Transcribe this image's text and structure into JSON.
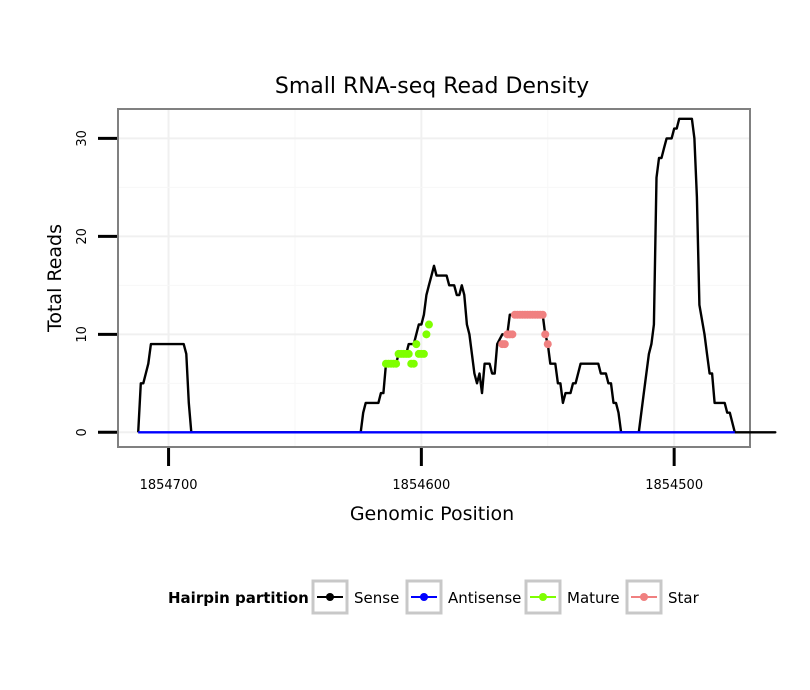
{
  "chart_data": {
    "type": "line",
    "title": "Small RNA-seq Read Density",
    "xlabel": "Genomic Position",
    "ylabel": "Total Reads",
    "x_reversed": true,
    "xlim": [
      1854720,
      1854470
    ],
    "ylim": [
      -1.5,
      33
    ],
    "x_ticks": [
      1854700,
      1854600,
      1854500
    ],
    "x_tick_labels": [
      "1854700",
      "1854600",
      "1854500"
    ],
    "y_ticks": [
      0,
      10,
      20,
      30
    ],
    "y_tick_labels": [
      "0",
      "10",
      "20",
      "30"
    ],
    "grid": true,
    "legend": {
      "title": "Hairpin partition",
      "position": "bottom",
      "entries": [
        {
          "name": "Sense",
          "color": "#000000"
        },
        {
          "name": "Antisense",
          "color": "#0000ff"
        },
        {
          "name": "Mature",
          "color": "#7fff00"
        },
        {
          "name": "Star",
          "color": "#f08080"
        }
      ]
    },
    "series": [
      {
        "name": "Sense",
        "color": "#000000",
        "style": "line",
        "points": [
          [
            1854712,
            0
          ],
          [
            1854711,
            5
          ],
          [
            1854710,
            5
          ],
          [
            1854709,
            6
          ],
          [
            1854708,
            7
          ],
          [
            1854707,
            9
          ],
          [
            1854706,
            9
          ],
          [
            1854700,
            9
          ],
          [
            1854694,
            9
          ],
          [
            1854693,
            8
          ],
          [
            1854692,
            3
          ],
          [
            1854691,
            0
          ],
          [
            1854670,
            0
          ],
          [
            1854650,
            0
          ],
          [
            1854624,
            0
          ],
          [
            1854623,
            2
          ],
          [
            1854622,
            3
          ],
          [
            1854621,
            3
          ],
          [
            1854617,
            3
          ],
          [
            1854616,
            4
          ],
          [
            1854615,
            4
          ],
          [
            1854614,
            7
          ],
          [
            1854610,
            7
          ],
          [
            1854609,
            8
          ],
          [
            1854606,
            8
          ],
          [
            1854605,
            9
          ],
          [
            1854603,
            9
          ],
          [
            1854601,
            11
          ],
          [
            1854600,
            11
          ],
          [
            1854599,
            12
          ],
          [
            1854598,
            14
          ],
          [
            1854597,
            15
          ],
          [
            1854596,
            16
          ],
          [
            1854595,
            17
          ],
          [
            1854594,
            16
          ],
          [
            1854590,
            16
          ],
          [
            1854589,
            15
          ],
          [
            1854587,
            15
          ],
          [
            1854586,
            14
          ],
          [
            1854585,
            14
          ],
          [
            1854584,
            15
          ],
          [
            1854583,
            14
          ],
          [
            1854582,
            11
          ],
          [
            1854581,
            10
          ],
          [
            1854580,
            8
          ],
          [
            1854579,
            6
          ],
          [
            1854578,
            5
          ],
          [
            1854577,
            6
          ],
          [
            1854576,
            4
          ],
          [
            1854575,
            7
          ],
          [
            1854573,
            7
          ],
          [
            1854572,
            6
          ],
          [
            1854571,
            6
          ],
          [
            1854570,
            9
          ],
          [
            1854568,
            10
          ],
          [
            1854566,
            10
          ],
          [
            1854565,
            12
          ],
          [
            1854552,
            12
          ],
          [
            1854551,
            10
          ],
          [
            1854550,
            9
          ],
          [
            1854549,
            7
          ],
          [
            1854547,
            7
          ],
          [
            1854546,
            5
          ],
          [
            1854545,
            5
          ],
          [
            1854544,
            3
          ],
          [
            1854543,
            4
          ],
          [
            1854541,
            4
          ],
          [
            1854540,
            5
          ],
          [
            1854539,
            5
          ],
          [
            1854538,
            6
          ],
          [
            1854537,
            7
          ],
          [
            1854530,
            7
          ],
          [
            1854529,
            6
          ],
          [
            1854527,
            6
          ],
          [
            1854526,
            5
          ],
          [
            1854525,
            5
          ],
          [
            1854524,
            3
          ],
          [
            1854523,
            3
          ],
          [
            1854522,
            2
          ],
          [
            1854521,
            0
          ],
          [
            1854514,
            0
          ],
          [
            1854512,
            4
          ],
          [
            1854510,
            8
          ],
          [
            1854509,
            9
          ],
          [
            1854508,
            11
          ],
          [
            1854507,
            26
          ],
          [
            1854506,
            28
          ],
          [
            1854505,
            28
          ],
          [
            1854504,
            29
          ],
          [
            1854503,
            30
          ],
          [
            1854501,
            30
          ],
          [
            1854500,
            31
          ],
          [
            1854499,
            31
          ],
          [
            1854498,
            32
          ],
          [
            1854493,
            32
          ],
          [
            1854492,
            30
          ],
          [
            1854491,
            24
          ],
          [
            1854490,
            13
          ],
          [
            1854488,
            10
          ],
          [
            1854487,
            8
          ],
          [
            1854486,
            6
          ],
          [
            1854485,
            6
          ],
          [
            1854484,
            3
          ],
          [
            1854480,
            3
          ],
          [
            1854479,
            2
          ],
          [
            1854478,
            2
          ],
          [
            1854477,
            1
          ],
          [
            1854476,
            0
          ],
          [
            1854465,
            0
          ],
          [
            1854460,
            0
          ],
          [
            1854463,
            0
          ]
        ]
      },
      {
        "name": "Antisense",
        "color": "#0000ff",
        "style": "line",
        "points": [
          [
            1854712,
            0
          ],
          [
            1854476,
            0
          ]
        ]
      },
      {
        "name": "Mature",
        "color": "#7fff00",
        "style": "points",
        "points": [
          [
            1854614,
            7
          ],
          [
            1854613,
            7
          ],
          [
            1854612,
            7
          ],
          [
            1854611,
            7
          ],
          [
            1854610,
            7
          ],
          [
            1854609,
            8
          ],
          [
            1854608,
            8
          ],
          [
            1854607,
            8
          ],
          [
            1854606,
            8
          ],
          [
            1854605,
            8
          ],
          [
            1854604,
            7
          ],
          [
            1854603,
            7
          ],
          [
            1854602,
            9
          ],
          [
            1854601,
            8
          ],
          [
            1854600,
            8
          ],
          [
            1854599,
            8
          ],
          [
            1854598,
            10
          ],
          [
            1854597,
            11
          ]
        ]
      },
      {
        "name": "Star",
        "color": "#f08080",
        "style": "points",
        "points": [
          [
            1854568,
            9
          ],
          [
            1854567,
            9
          ],
          [
            1854566,
            10
          ],
          [
            1854565,
            10
          ],
          [
            1854564,
            10
          ],
          [
            1854563,
            12
          ],
          [
            1854562,
            12
          ],
          [
            1854561,
            12
          ],
          [
            1854560,
            12
          ],
          [
            1854559,
            12
          ],
          [
            1854558,
            12
          ],
          [
            1854557,
            12
          ],
          [
            1854556,
            12
          ],
          [
            1854555,
            12
          ],
          [
            1854554,
            12
          ],
          [
            1854553,
            12
          ],
          [
            1854552,
            12
          ],
          [
            1854551,
            10
          ],
          [
            1854550,
            9
          ]
        ]
      }
    ]
  }
}
